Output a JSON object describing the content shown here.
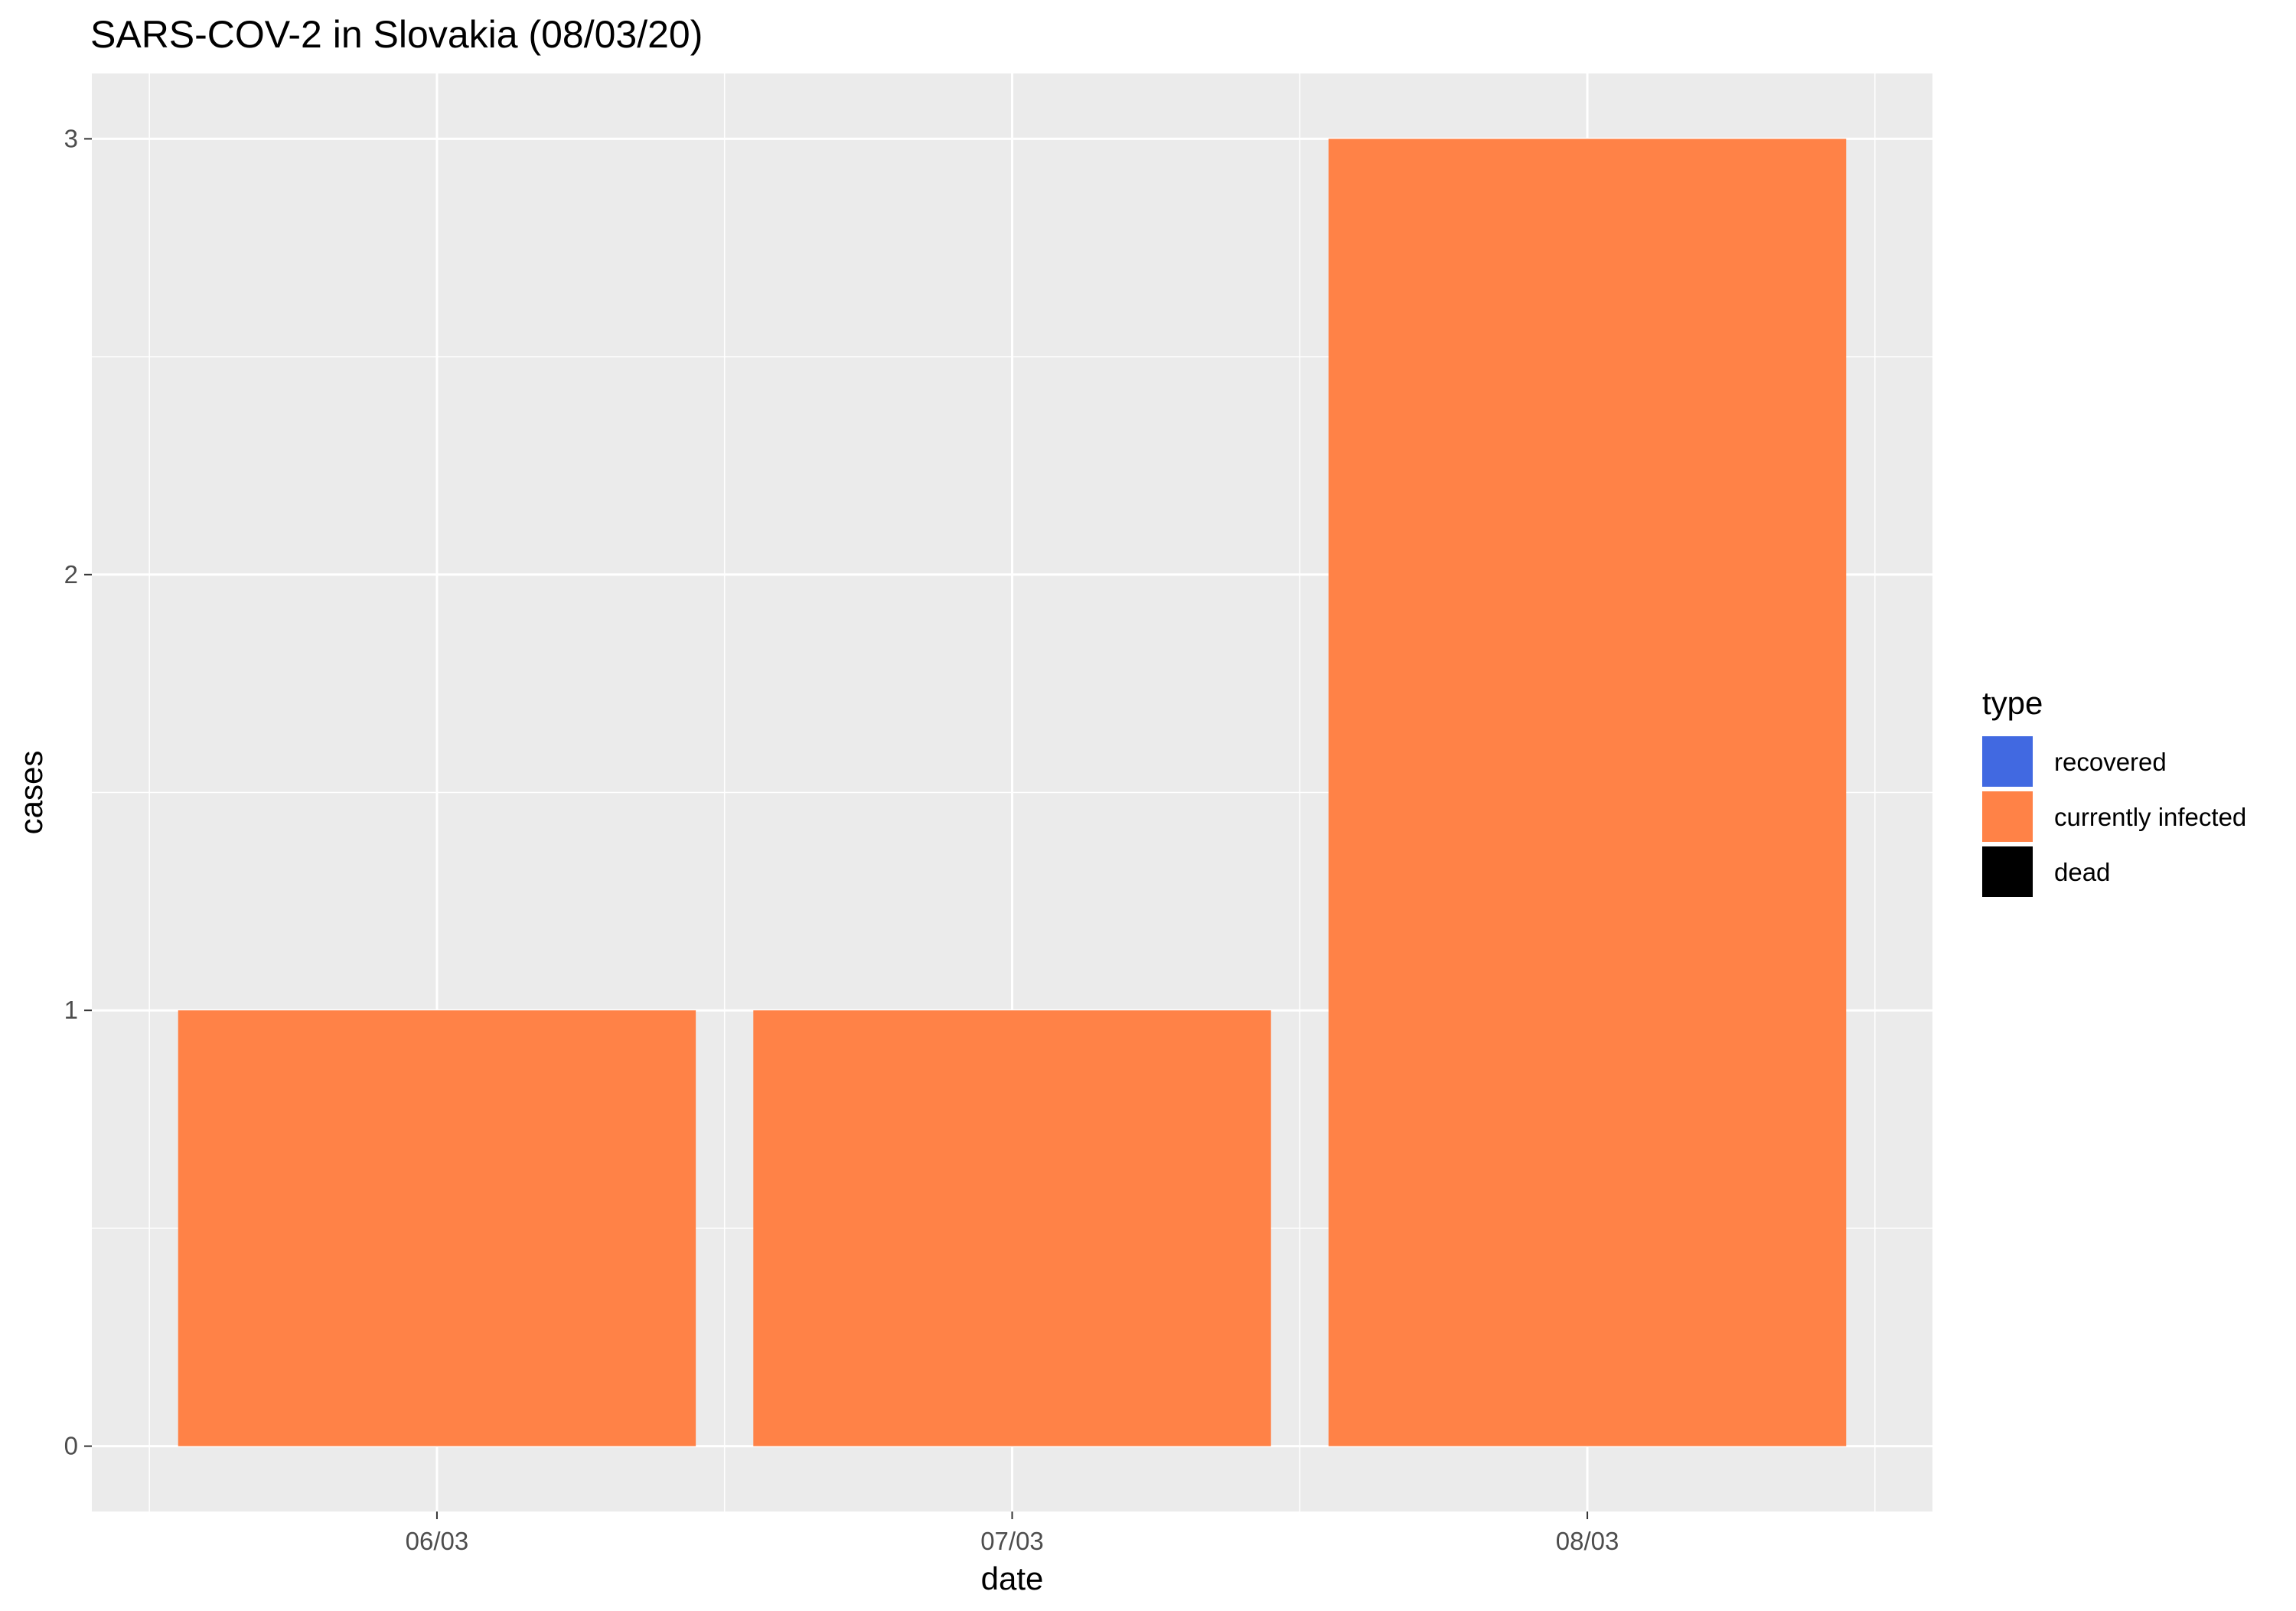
{
  "chart_data": {
    "type": "bar",
    "stacked": true,
    "title": "SARS-COV-2 in Slovakia (08/03/20)",
    "xlabel": "date",
    "ylabel": "cases",
    "categories": [
      "06/03",
      "07/03",
      "08/03"
    ],
    "series": [
      {
        "name": "recovered",
        "color": "#4169E1",
        "values": [
          0,
          0,
          0
        ]
      },
      {
        "name": "currently infected",
        "color": "#FF8247",
        "values": [
          1,
          1,
          3
        ]
      },
      {
        "name": "dead",
        "color": "#000000",
        "values": [
          0,
          0,
          0
        ]
      }
    ],
    "ylim": [
      -0.15,
      3.15
    ],
    "yticks": [
      0,
      1,
      2,
      3
    ],
    "grid": true,
    "legend": {
      "title": "type",
      "placement": "right"
    },
    "colors": {
      "panel_background": "#EBEBEB",
      "grid": "#FFFFFF",
      "tick_text": "#4D4D4D"
    }
  }
}
